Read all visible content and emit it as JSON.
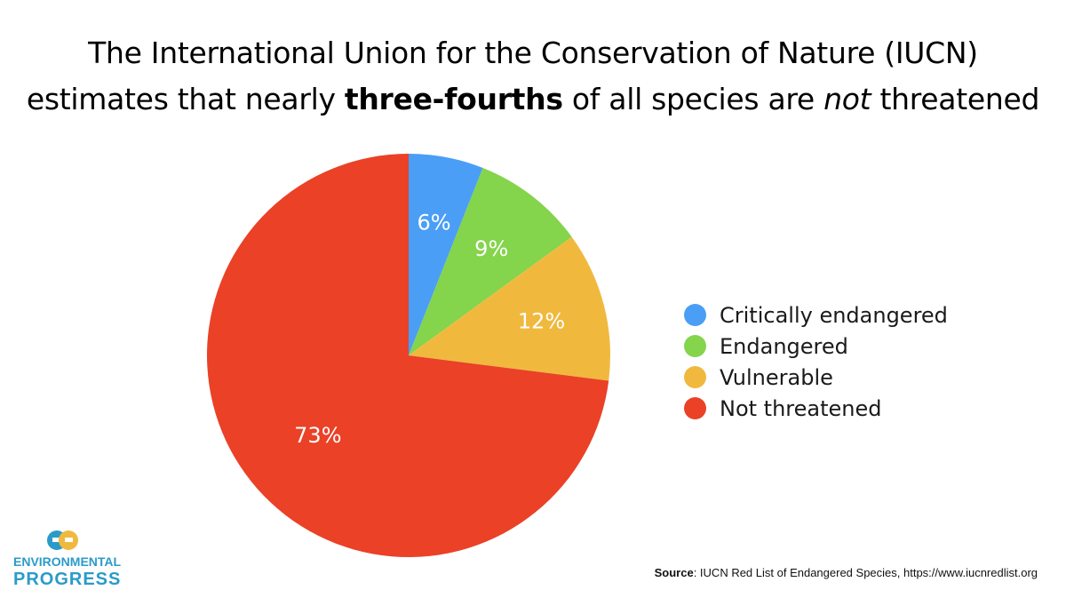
{
  "title": {
    "line1": "The International Union for the Conservation of Nature (IUCN)",
    "line2_before": "estimates that nearly ",
    "line2_bold": "three-fourths",
    "line2_middle": " of all species are ",
    "line2_italic": "not",
    "line2_after": " threatened"
  },
  "chart_data": {
    "type": "pie",
    "title": "The International Union for the Conservation of Nature (IUCN) estimates that nearly three-fourths of all species are not threatened",
    "categories": [
      "Critically endangered",
      "Endangered",
      "Vulnerable",
      "Not threatened"
    ],
    "values": [
      6,
      9,
      12,
      73
    ],
    "data_labels": [
      "6%",
      "9%",
      "12%",
      "73%"
    ],
    "colors": [
      "#4a9ef5",
      "#84d44c",
      "#f0b93e",
      "#ea4127"
    ],
    "start_angle": "12 o'clock",
    "direction": "clockwise",
    "legend_placement": "right"
  },
  "legend": {
    "items": [
      {
        "label": "Critically endangered",
        "color": "#4a9ef5"
      },
      {
        "label": "Endangered",
        "color": "#84d44c"
      },
      {
        "label": "Vulnerable",
        "color": "#f0b93e"
      },
      {
        "label": "Not threatened",
        "color": "#ea4127"
      }
    ]
  },
  "logo": {
    "icon": "environmental-progress-logo-icon",
    "line1": "ENVIRONMENTAL",
    "line2": "PROGRESS",
    "colors": [
      "#2a9bc9",
      "#f0b93e"
    ]
  },
  "source": {
    "label": "Source",
    "text": ": IUCN Red List of Endangered Species, https://www.iucnredlist.org"
  }
}
